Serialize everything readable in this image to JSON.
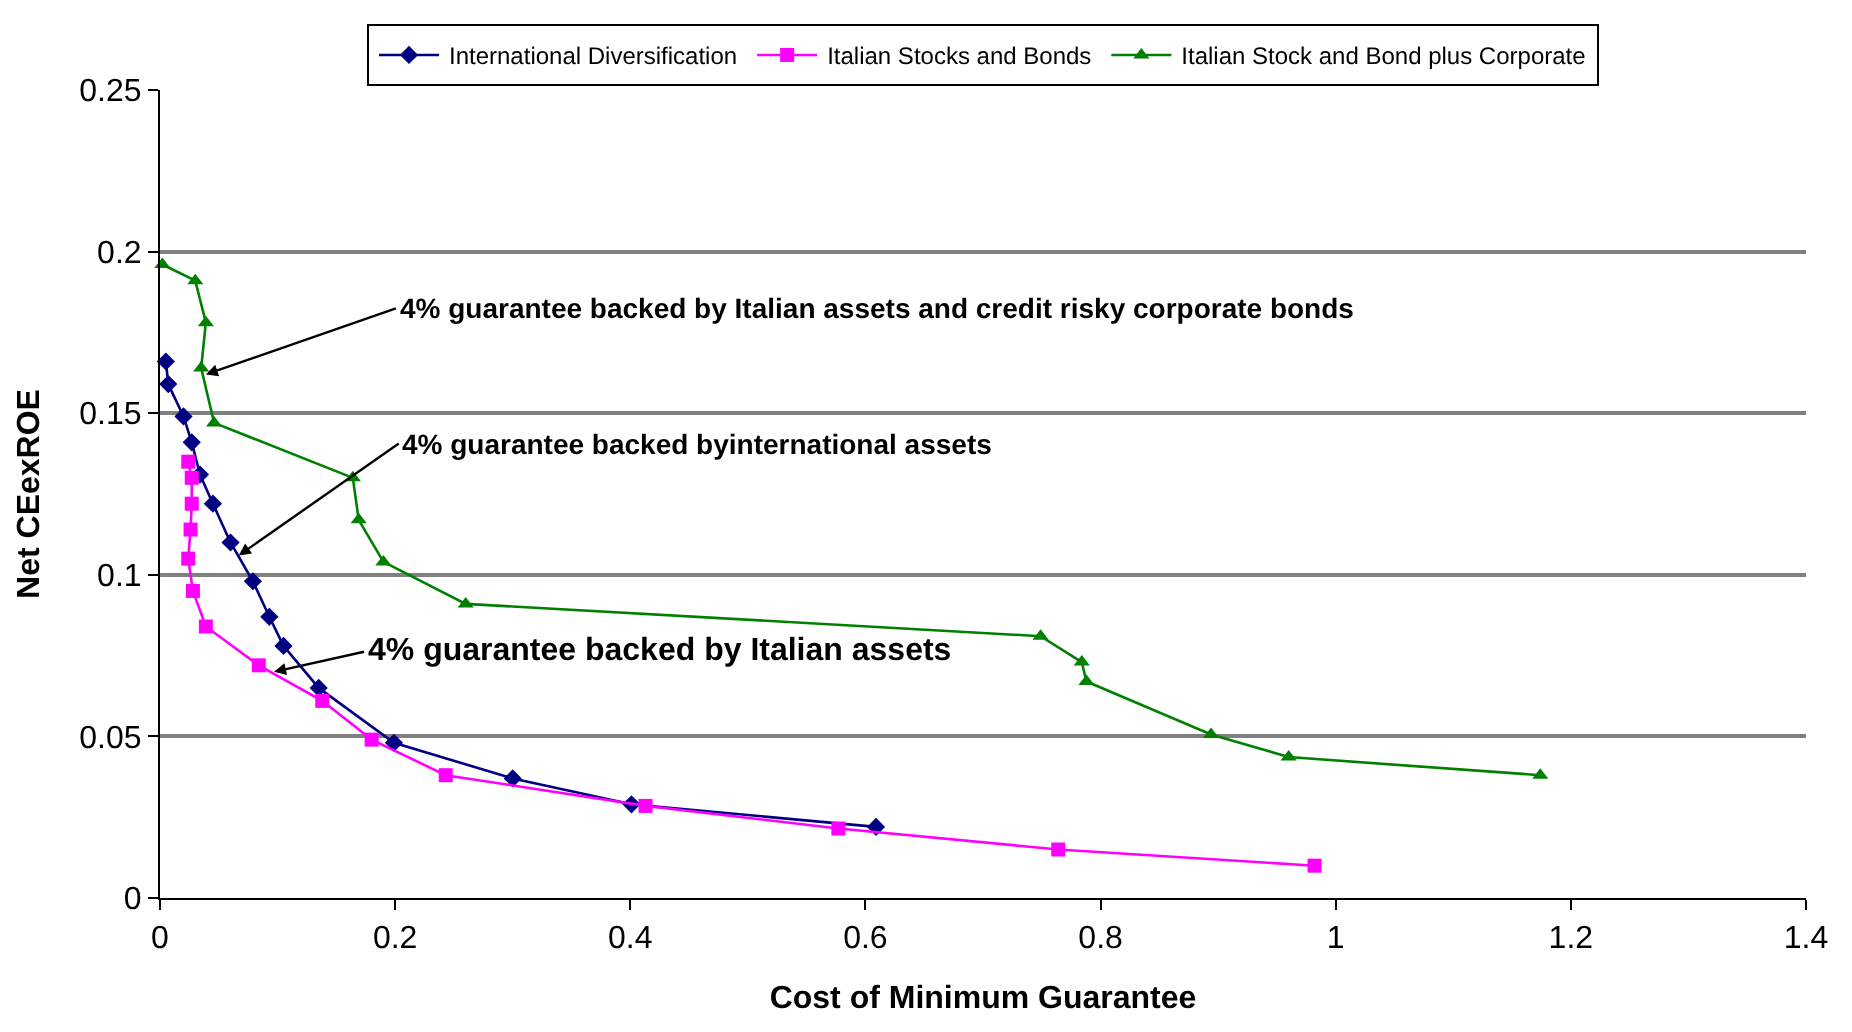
{
  "chart_data": {
    "type": "line",
    "xlabel": "Cost of Minimum Guarantee",
    "ylabel": "Net CEexROE",
    "xlim": [
      0,
      1.4
    ],
    "ylim": [
      0,
      0.25
    ],
    "xticks": [
      0,
      0.2,
      0.4,
      0.6,
      0.8,
      1,
      1.2,
      1.4
    ],
    "yticks": [
      0,
      0.05,
      0.1,
      0.15,
      0.2,
      0.25
    ],
    "grid": "y",
    "legend": "top",
    "series": [
      {
        "name": "International Diversification",
        "color": "#000080",
        "marker": "diamond",
        "x": [
          0.005,
          0.007,
          0.02,
          0.027,
          0.034,
          0.045,
          0.06,
          0.079,
          0.093,
          0.105,
          0.135,
          0.199,
          0.3,
          0.401,
          0.609
        ],
        "values": [
          0.166,
          0.159,
          0.149,
          0.141,
          0.131,
          0.122,
          0.11,
          0.098,
          0.087,
          0.078,
          0.065,
          0.048,
          0.037,
          0.029,
          0.022
        ]
      },
      {
        "name": "Italian Stocks and Bonds",
        "color": "#ff00ff",
        "marker": "square",
        "x": [
          0.024,
          0.027,
          0.027,
          0.026,
          0.024,
          0.028,
          0.039,
          0.084,
          0.138,
          0.18,
          0.243,
          0.413,
          0.577,
          0.764,
          0.982
        ],
        "values": [
          0.135,
          0.13,
          0.122,
          0.114,
          0.105,
          0.095,
          0.084,
          0.072,
          0.061,
          0.049,
          0.038,
          0.0285,
          0.0215,
          0.015,
          0.01
        ]
      },
      {
        "name": "Italian Stock and Bond plus Corporate",
        "color": "#008000",
        "marker": "triangle",
        "x": [
          0.002,
          0.03,
          0.039,
          0.035,
          0.046,
          0.164,
          0.169,
          0.19,
          0.26,
          0.749,
          0.784,
          0.788,
          0.894,
          0.96,
          1.174
        ],
        "values": [
          0.196,
          0.191,
          0.178,
          0.164,
          0.147,
          0.13,
          0.117,
          0.104,
          0.091,
          0.081,
          0.073,
          0.067,
          0.0506,
          0.0436,
          0.038
        ]
      }
    ],
    "annotations": [
      {
        "text": "4% guarantee backed by Italian assets and credit risky corporate bonds",
        "x": 0.039,
        "y": 0.162
      },
      {
        "text": "4% guarantee backed byinternational assets",
        "x": 0.067,
        "y": 0.106
      },
      {
        "text": "4% guarantee backed by Italian assets",
        "x": 0.097,
        "y": 0.07
      }
    ]
  }
}
